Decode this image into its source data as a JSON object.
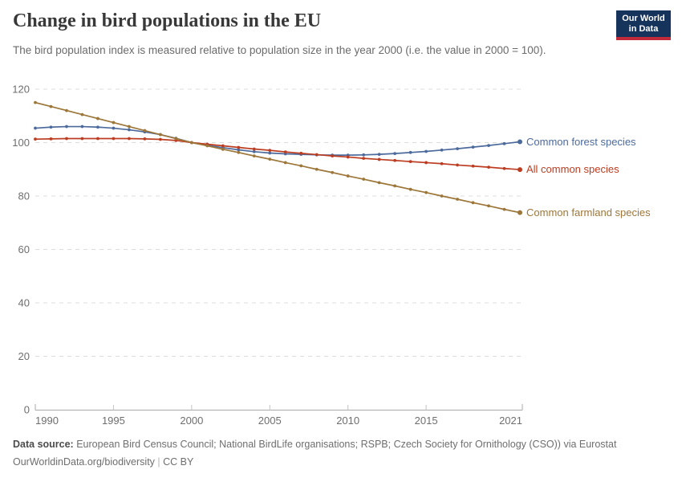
{
  "header": {
    "title": "Change in bird populations in the EU",
    "subtitle": "The bird population index is measured relative to population size in the year 2000 (i.e. the value in 2000 = 100).",
    "logo": {
      "line1": "Our World",
      "line2": "in Data",
      "bg_color": "#16335B",
      "bar_color": "#C12A38"
    }
  },
  "chart_data": {
    "type": "line",
    "title": "Change in bird populations in the EU",
    "xlabel": "",
    "ylabel": "",
    "x": [
      1990,
      1991,
      1992,
      1993,
      1994,
      1995,
      1996,
      1997,
      1998,
      1999,
      2000,
      2001,
      2002,
      2003,
      2004,
      2005,
      2006,
      2007,
      2008,
      2009,
      2010,
      2011,
      2012,
      2013,
      2014,
      2015,
      2016,
      2017,
      2018,
      2019,
      2020,
      2021
    ],
    "series": [
      {
        "name": "Common forest species",
        "color": "#4C6A9C",
        "values": [
          105.4,
          105.8,
          106.0,
          106.0,
          105.8,
          105.4,
          104.8,
          104.0,
          103.0,
          101.6,
          100.0,
          99.0,
          98.1,
          97.3,
          96.6,
          96.1,
          95.8,
          95.6,
          95.4,
          95.3,
          95.3,
          95.4,
          95.6,
          95.9,
          96.3,
          96.7,
          97.2,
          97.7,
          98.3,
          98.9,
          99.6,
          100.3
        ]
      },
      {
        "name": "All common species",
        "color": "#BC3D22",
        "values": [
          101.3,
          101.4,
          101.5,
          101.5,
          101.5,
          101.5,
          101.5,
          101.4,
          101.2,
          100.8,
          100.0,
          99.4,
          98.8,
          98.2,
          97.6,
          97.1,
          96.5,
          96.0,
          95.5,
          95.0,
          94.6,
          94.1,
          93.7,
          93.3,
          92.9,
          92.5,
          92.1,
          91.6,
          91.2,
          90.8,
          90.3,
          89.9
        ]
      },
      {
        "name": "Common farmland species",
        "color": "#9D7639",
        "values": [
          115.0,
          113.5,
          112.0,
          110.5,
          109.0,
          107.5,
          106.0,
          104.5,
          103.0,
          101.5,
          100.0,
          98.8,
          97.5,
          96.3,
          95.0,
          93.8,
          92.5,
          91.3,
          90.0,
          88.8,
          87.5,
          86.3,
          85.0,
          83.8,
          82.5,
          81.3,
          80.0,
          78.8,
          77.5,
          76.3,
          75.0,
          73.8
        ]
      }
    ],
    "ylim": [
      0,
      120
    ],
    "yticks": [
      0,
      20,
      40,
      60,
      80,
      100,
      120
    ],
    "xticks": [
      1990,
      1995,
      2000,
      2005,
      2010,
      2015,
      2021
    ],
    "grid": "horizontal-dashed",
    "legend": "end-of-line-labels",
    "axis_color": "#a9a9a9",
    "grid_color": "#dcdcdc",
    "tick_label_color": "#6e6e6e"
  },
  "footer": {
    "source_label": "Data source:",
    "source_text": "European Bird Census Council; National BirdLife organisations; RSPB; Czech Society for Ornithology (CSO)) via Eurostat",
    "url": "OurWorldinData.org/biodiversity",
    "separator": "|",
    "license": "CC BY"
  }
}
